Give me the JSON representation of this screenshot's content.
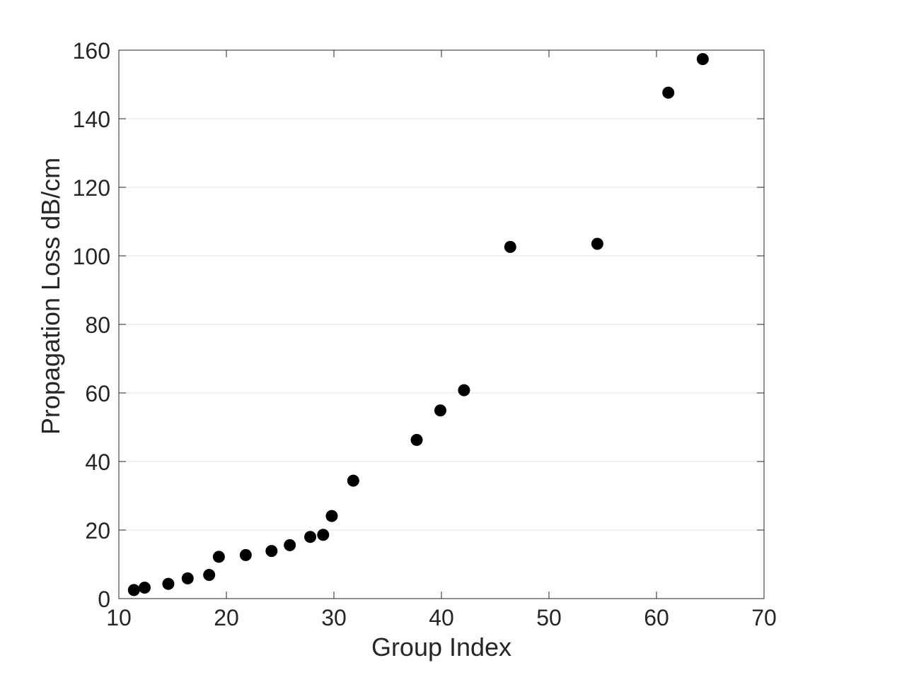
{
  "chart_data": {
    "type": "scatter",
    "title": "",
    "xlabel": "Group Index",
    "ylabel": "Propagation Loss dB/cm",
    "xlim": [
      10,
      70
    ],
    "ylim": [
      0,
      160
    ],
    "xticks": [
      10,
      20,
      30,
      40,
      50,
      60,
      70
    ],
    "yticks": [
      0,
      20,
      40,
      60,
      80,
      100,
      120,
      140,
      160
    ],
    "grid": "horizontal",
    "marker_color": "#000000",
    "series": [
      {
        "x": [
          11.4,
          12.4,
          14.6,
          16.4,
          18.4,
          19.3,
          21.8,
          24.2,
          25.9,
          27.8,
          29.0,
          29.8,
          31.8,
          37.7,
          39.9,
          42.1,
          46.4,
          54.5,
          61.1,
          64.3
        ],
        "y": [
          2.5,
          3.2,
          4.3,
          5.9,
          6.9,
          12.2,
          12.7,
          13.9,
          15.6,
          18.0,
          18.6,
          24.1,
          34.4,
          46.3,
          54.9,
          60.8,
          102.6,
          103.5,
          147.6,
          157.4
        ]
      }
    ]
  }
}
